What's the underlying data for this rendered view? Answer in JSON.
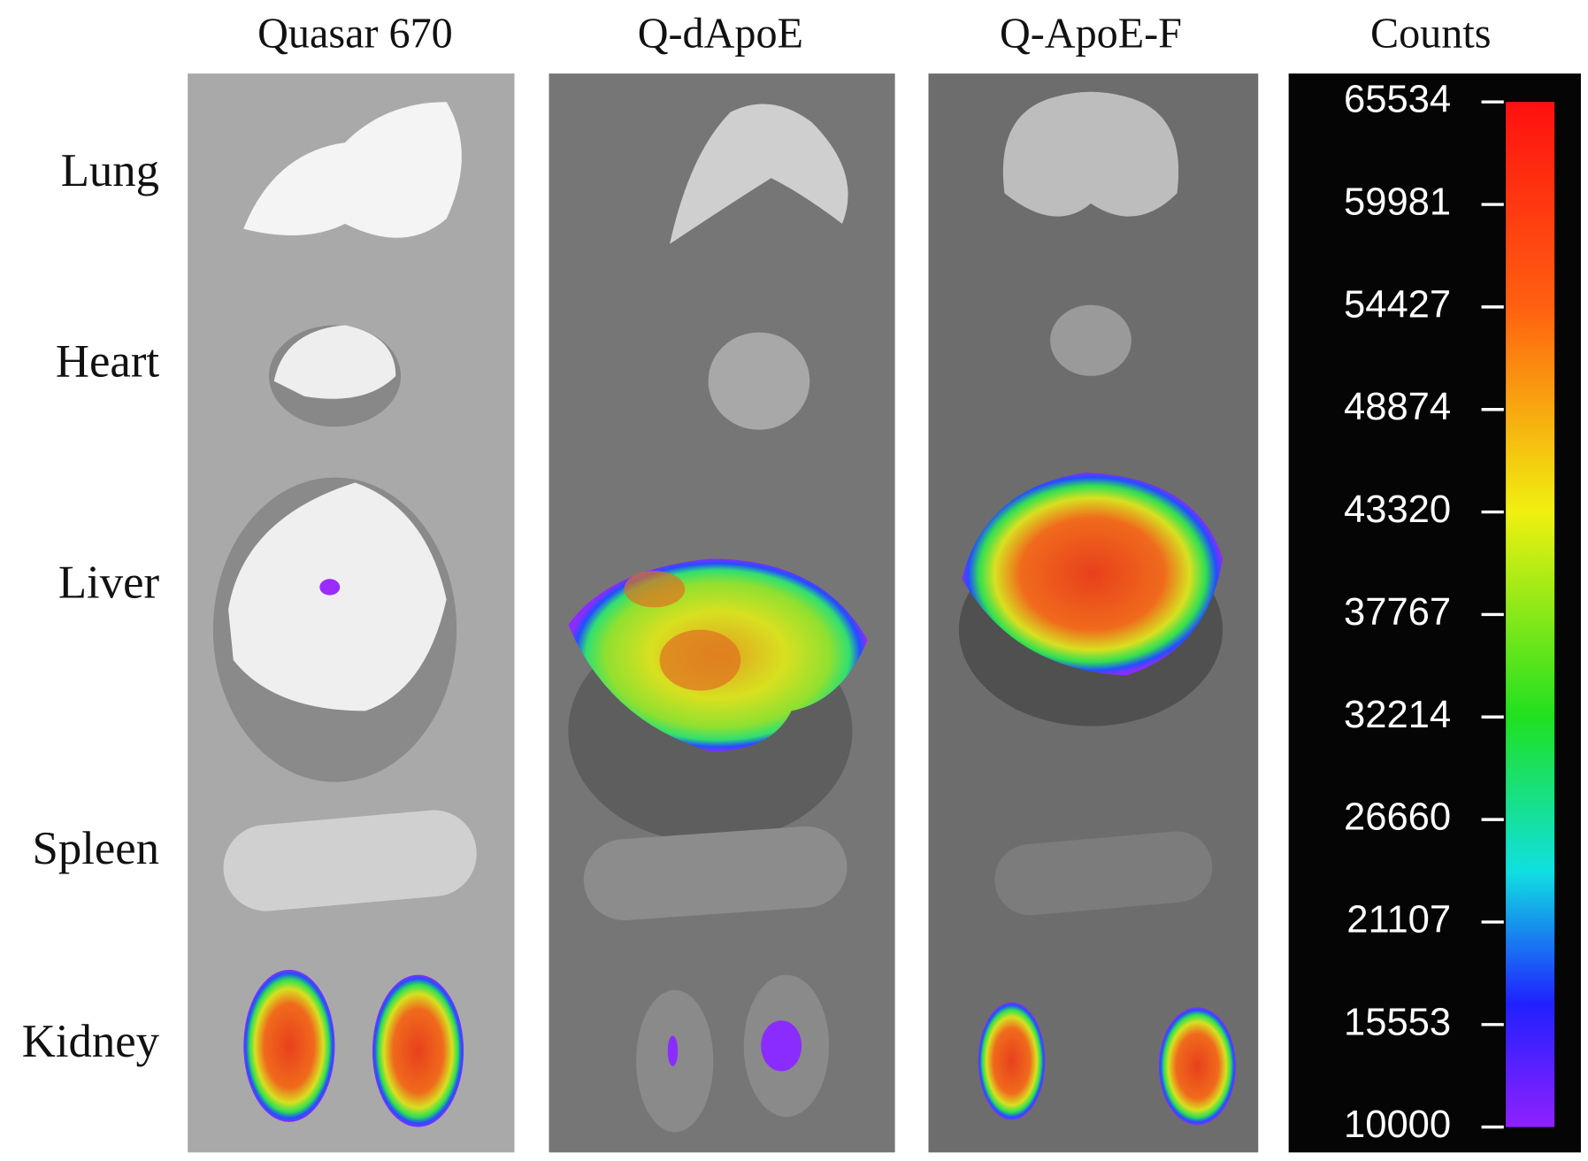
{
  "columns": [
    "Quasar  670",
    "Q-dApoE",
    "Q-ApoE-F"
  ],
  "rows": [
    "Lung",
    "Heart",
    "Liver",
    "Spleen",
    "Kidney"
  ],
  "colorbar": {
    "title": "Counts",
    "range": [
      10000,
      65534
    ],
    "ticks": [
      65534,
      59981,
      54427,
      48874,
      43320,
      37767,
      32214,
      26660,
      21107,
      15553,
      10000
    ]
  }
}
